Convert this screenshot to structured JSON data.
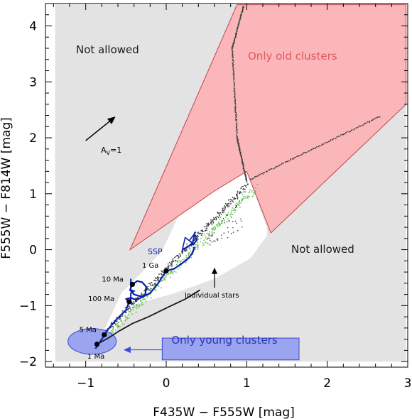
{
  "chart_data": {
    "type": "scatter",
    "xlabel": "F435W − F555W [mag]",
    "ylabel": "F555W − F814W [mag]",
    "xlim": [
      -1.5,
      3.0
    ],
    "ylim": [
      -2.1,
      4.4
    ],
    "x_ticks": [
      -1,
      0,
      1,
      2,
      3
    ],
    "y_ticks": [
      -2,
      -1,
      0,
      1,
      2,
      3,
      4
    ],
    "x_tick_labels": [
      "−1",
      "0",
      "1",
      "2",
      "3"
    ],
    "y_tick_labels": [
      "−2",
      "−1",
      "0",
      "1",
      "2",
      "3",
      "4"
    ],
    "colors": {
      "not_allowed": "#e3e3e3",
      "old_clusters": "#fbb6b9",
      "old_clusters_edge": "#c0444a",
      "old_clusters_text": "#e0585e",
      "young_clusters": "#9aa4ef",
      "young_clusters_edge": "#3c4ad6",
      "young_clusters_text": "#2a36b8",
      "ssp_track": "#0b1fb0",
      "stars_dark": "#3a3a3a",
      "stars_green": "#5fbf4f"
    },
    "region_labels": {
      "not_allowed_upper": "Not allowed",
      "not_allowed_lower": "Not allowed",
      "only_old_clusters": "Only old clusters",
      "only_young_clusters": "Only young clusters"
    },
    "regions": {
      "not_allowed_bg": [
        [
          -1.38,
          -2.0
        ],
        [
          2.98,
          -2.0
        ],
        [
          2.98,
          4.38
        ],
        [
          -1.38,
          4.38
        ]
      ],
      "allowed_white": [
        [
          -0.95,
          -2.0
        ],
        [
          -0.55,
          -0.75
        ],
        [
          -0.5,
          -0.7
        ],
        [
          -0.05,
          -0.02
        ],
        [
          0.2,
          0.75
        ],
        [
          1.0,
          1.4
        ],
        [
          1.25,
          0.4
        ],
        [
          1.25,
          0.25
        ],
        [
          1.05,
          -0.15
        ],
        [
          0.6,
          -0.52
        ],
        [
          0.1,
          -0.78
        ],
        [
          -0.4,
          -0.98
        ],
        [
          -0.55,
          -1.3
        ]
      ],
      "only_old_clusters": [
        [
          0.88,
          4.38
        ],
        [
          2.98,
          4.38
        ],
        [
          2.98,
          2.6
        ],
        [
          1.3,
          0.3
        ],
        [
          1.0,
          1.4
        ],
        [
          0.6,
          1.05
        ],
        [
          -0.45,
          0.0
        ]
      ]
    },
    "annotations": {
      "ssp_label": "SSP",
      "av_label_main": "A",
      "av_label_sub": "V",
      "av_label_tail": "=1",
      "age_labels": [
        "1 Ga",
        "10 Ma",
        "100 Ma",
        "5 Ma",
        "1 Ma"
      ],
      "individual_stars_label": "Individual stars"
    },
    "av_arrow": {
      "from": [
        -1.0,
        1.95
      ],
      "to": [
        -0.63,
        2.38
      ]
    },
    "ssp_arrow": {
      "from": [
        0.37,
        0.32
      ],
      "to": [
        0.2,
        0.0
      ]
    },
    "stars_arrow": {
      "from": [
        0.6,
        -0.68
      ],
      "to": [
        0.6,
        -0.32
      ]
    },
    "young_arrow": {
      "from": [
        -0.05,
        -1.79
      ],
      "to": [
        -0.53,
        -1.79
      ]
    },
    "age_points": [
      {
        "label": "1 Ga",
        "x": 0.0,
        "y": -0.38,
        "lx": -0.3,
        "ly": -0.32,
        "anchor": "start"
      },
      {
        "label": "10 Ma",
        "x": -0.42,
        "y": -0.62,
        "lx": -0.8,
        "ly": -0.57,
        "anchor": "start"
      },
      {
        "label": "100 Ma",
        "x": -0.46,
        "y": -0.93,
        "lx": -0.97,
        "ly": -0.92,
        "anchor": "start"
      },
      {
        "label": "5 Ma",
        "x": -0.77,
        "y": -1.52,
        "lx": -1.08,
        "ly": -1.47,
        "anchor": "start"
      },
      {
        "label": "1 Ma",
        "x": -0.86,
        "y": -1.69,
        "lx": -0.98,
        "ly": -1.95,
        "anchor": "start"
      }
    ],
    "young_ellipse": {
      "cx": -0.92,
      "cy": -1.64,
      "rx": 0.3,
      "ry": 0.23
    },
    "young_box": {
      "x0": -0.05,
      "x1": 1.65,
      "y0": -1.97,
      "y1": -1.58
    },
    "ssp_track": [
      [
        -0.88,
        -1.77
      ],
      [
        -0.8,
        -1.6
      ],
      [
        -0.72,
        -1.42
      ],
      [
        -0.62,
        -1.25
      ],
      [
        -0.5,
        -1.08
      ],
      [
        -0.46,
        -0.93
      ],
      [
        -0.5,
        -0.88
      ],
      [
        -0.44,
        -0.86
      ],
      [
        -0.37,
        -0.9
      ],
      [
        -0.26,
        -0.82
      ],
      [
        -0.25,
        -0.66
      ],
      [
        -0.3,
        -0.58
      ],
      [
        -0.36,
        -0.56
      ],
      [
        -0.42,
        -0.62
      ],
      [
        -0.45,
        -0.72
      ],
      [
        -0.4,
        -0.8
      ],
      [
        -0.3,
        -0.84
      ],
      [
        -0.2,
        -0.78
      ],
      [
        -0.1,
        -0.6
      ],
      [
        0.0,
        -0.38
      ],
      [
        0.1,
        -0.34
      ],
      [
        0.2,
        -0.24
      ],
      [
        0.28,
        -0.15
      ],
      [
        0.33,
        -0.05
      ],
      [
        0.35,
        0.05
      ]
    ],
    "ssp_hook": [
      [
        -0.44,
        -0.52
      ],
      [
        -0.44,
        -0.72
      ],
      [
        -0.4,
        -0.74
      ],
      [
        -0.44,
        -0.78
      ],
      [
        -0.44,
        -0.92
      ],
      [
        -0.42,
        -0.98
      ]
    ],
    "ssp_tail": [
      [
        -0.86,
        -1.69
      ],
      [
        -0.72,
        -1.58
      ],
      [
        -0.58,
        -1.45
      ],
      [
        -0.42,
        -1.32
      ],
      [
        -0.22,
        -1.2
      ],
      [
        0.02,
        -1.03
      ],
      [
        0.24,
        -0.88
      ],
      [
        0.42,
        -0.72
      ]
    ],
    "ssp_flag": [
      [
        0.22,
        0.0
      ],
      [
        0.33,
        0.12
      ],
      [
        0.35,
        0.28
      ],
      [
        0.38,
        0.17
      ],
      [
        0.33,
        0.08
      ]
    ],
    "star_sequences": {
      "upper_branch": {
        "x0": 0.96,
        "x1": 0.82,
        "y0": 4.35,
        "y1": 3.6,
        "n": 70
      },
      "mid_branch": {
        "x0": 0.82,
        "x1": 0.88,
        "y0": 3.6,
        "y1": 2.0,
        "n": 90
      },
      "lower_branch": {
        "x0": 0.88,
        "x1": 1.0,
        "y0": 2.0,
        "y1": 1.22,
        "n": 80
      },
      "red_giant_tail": {
        "x0": 1.05,
        "x1": 2.65,
        "y0": 1.26,
        "y1": 2.38,
        "n": 110
      },
      "main_sequence_dark": {
        "x0": -0.85,
        "x1": 1.0,
        "y0": -1.62,
        "y1": 1.15,
        "n": 360,
        "spread": 0.05
      },
      "main_sequence_green": {
        "x0": -0.82,
        "x1": 1.1,
        "y0": -1.66,
        "y1": 1.1,
        "n": 330,
        "spread": 0.08
      },
      "scatter_dark": {
        "x0": 0.5,
        "x1": 0.95,
        "y0": 0.0,
        "y1": 0.95,
        "n": 45
      }
    }
  }
}
